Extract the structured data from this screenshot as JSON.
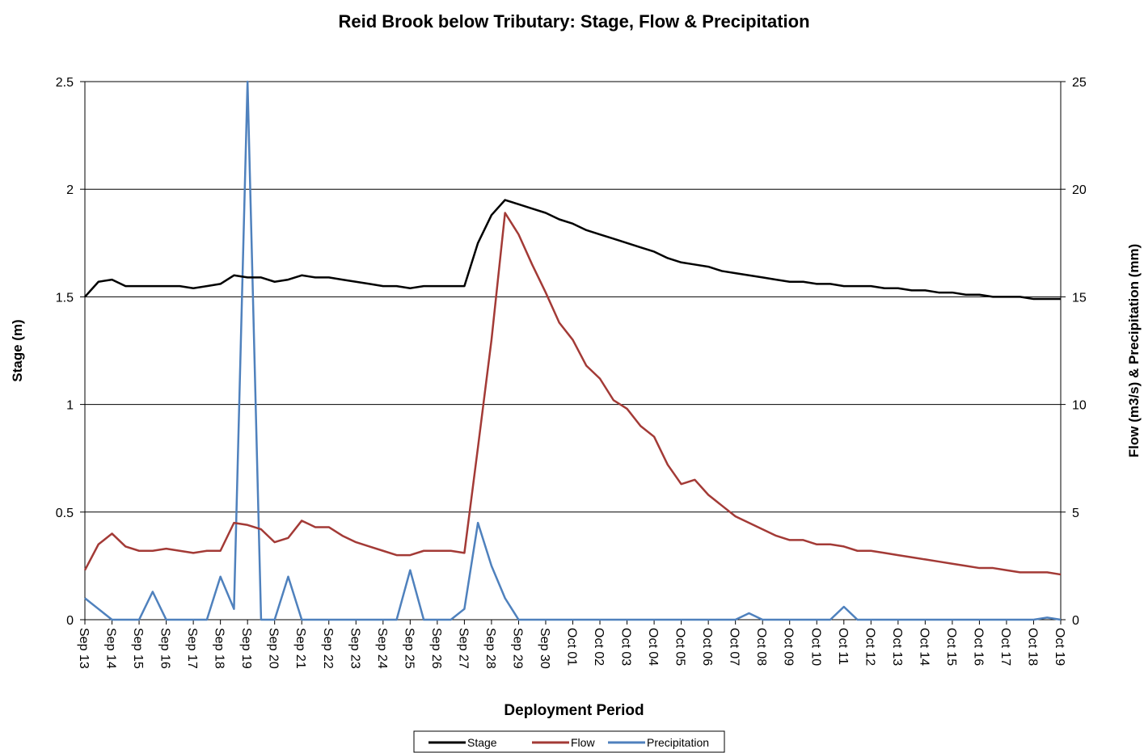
{
  "chart_data": {
    "type": "line",
    "title": "Reid Brook below Tributary:  Stage, Flow & Precipitation",
    "x_label": "Deployment Period",
    "y_label": "Stage (m)",
    "y2_label": "Flow (m3/s) & Precipitation (mm)",
    "categories": [
      "Sep 13",
      null,
      "Sep 14",
      null,
      "Sep 15",
      null,
      "Sep 16",
      null,
      "Sep 17",
      null,
      "Sep 18",
      null,
      "Sep 19",
      null,
      "Sep 20",
      null,
      "Sep 21",
      null,
      "Sep 22",
      null,
      "Sep 23",
      null,
      "Sep 24",
      null,
      "Sep 25",
      null,
      "Sep 26",
      null,
      "Sep 27",
      null,
      "Sep 28",
      null,
      "Sep 29",
      null,
      "Sep 30",
      null,
      "Oct 01",
      null,
      "Oct 02",
      null,
      "Oct 03",
      null,
      "Oct 04",
      null,
      "Oct 05",
      null,
      "Oct 06",
      null,
      "Oct 07",
      null,
      "Oct 08",
      null,
      "Oct 09",
      null,
      "Oct 10",
      null,
      "Oct 11",
      null,
      "Oct 12",
      null,
      "Oct 13",
      null,
      "Oct 14",
      null,
      "Oct 15",
      null,
      "Oct 16",
      null,
      "Oct 17",
      null,
      "Oct 18",
      null,
      "Oct 19"
    ],
    "series": [
      {
        "name": "Stage",
        "color": "#000000",
        "axis": "y",
        "values": [
          1.5,
          1.57,
          1.58,
          1.55,
          1.55,
          1.55,
          1.55,
          1.55,
          1.54,
          1.55,
          1.56,
          1.6,
          1.59,
          1.59,
          1.57,
          1.58,
          1.6,
          1.59,
          1.59,
          1.58,
          1.57,
          1.56,
          1.55,
          1.55,
          1.54,
          1.55,
          1.55,
          1.55,
          1.55,
          1.75,
          1.88,
          1.95,
          1.93,
          1.91,
          1.89,
          1.86,
          1.84,
          1.81,
          1.79,
          1.77,
          1.75,
          1.73,
          1.71,
          1.68,
          1.66,
          1.65,
          1.64,
          1.62,
          1.61,
          1.6,
          1.59,
          1.58,
          1.57,
          1.57,
          1.56,
          1.56,
          1.55,
          1.55,
          1.55,
          1.54,
          1.54,
          1.53,
          1.53,
          1.52,
          1.52,
          1.51,
          1.51,
          1.5,
          1.5,
          1.5,
          1.49,
          1.49,
          1.49
        ]
      },
      {
        "name": "Flow",
        "color": "#a33a36",
        "axis": "y2",
        "values": [
          2.3,
          3.5,
          4.0,
          3.4,
          3.2,
          3.2,
          3.3,
          3.2,
          3.1,
          3.2,
          3.2,
          4.5,
          4.4,
          4.2,
          3.6,
          3.8,
          4.6,
          4.3,
          4.3,
          3.9,
          3.6,
          3.4,
          3.2,
          3.0,
          3.0,
          3.2,
          3.2,
          3.2,
          3.1,
          8.0,
          13.0,
          18.9,
          17.9,
          16.5,
          15.2,
          13.8,
          13.0,
          11.8,
          11.2,
          10.2,
          9.8,
          9.0,
          8.5,
          7.2,
          6.3,
          6.5,
          5.8,
          5.3,
          4.8,
          4.5,
          4.2,
          3.9,
          3.7,
          3.7,
          3.5,
          3.5,
          3.4,
          3.2,
          3.2,
          3.1,
          3.0,
          2.9,
          2.8,
          2.7,
          2.6,
          2.5,
          2.4,
          2.4,
          2.3,
          2.2,
          2.2,
          2.2,
          2.1
        ]
      },
      {
        "name": "Precipitation",
        "color": "#4f81bd",
        "axis": "y2",
        "values": [
          1.0,
          0.5,
          0,
          0,
          0,
          1.3,
          0,
          0,
          0,
          0,
          2.0,
          0.5,
          25,
          0,
          0,
          2.0,
          0,
          0,
          0,
          0,
          0,
          0,
          0,
          0,
          2.3,
          0,
          0,
          0,
          0.5,
          4.5,
          2.5,
          1.0,
          0,
          0,
          0,
          0,
          0,
          0,
          0,
          0,
          0,
          0,
          0,
          0,
          0,
          0,
          0,
          0,
          0,
          0.3,
          0,
          0,
          0,
          0,
          0,
          0,
          0.6,
          0,
          0,
          0,
          0,
          0,
          0,
          0,
          0,
          0,
          0,
          0,
          0,
          0,
          0,
          0.1,
          0
        ]
      }
    ],
    "ylim": [
      0,
      2.5
    ],
    "yticks": [
      0,
      0.5,
      1,
      1.5,
      2,
      2.5
    ],
    "y2lim": [
      0,
      25
    ],
    "y2ticks": [
      0,
      5,
      10,
      15,
      20,
      25
    ],
    "grid": true,
    "legend": "bottom"
  }
}
